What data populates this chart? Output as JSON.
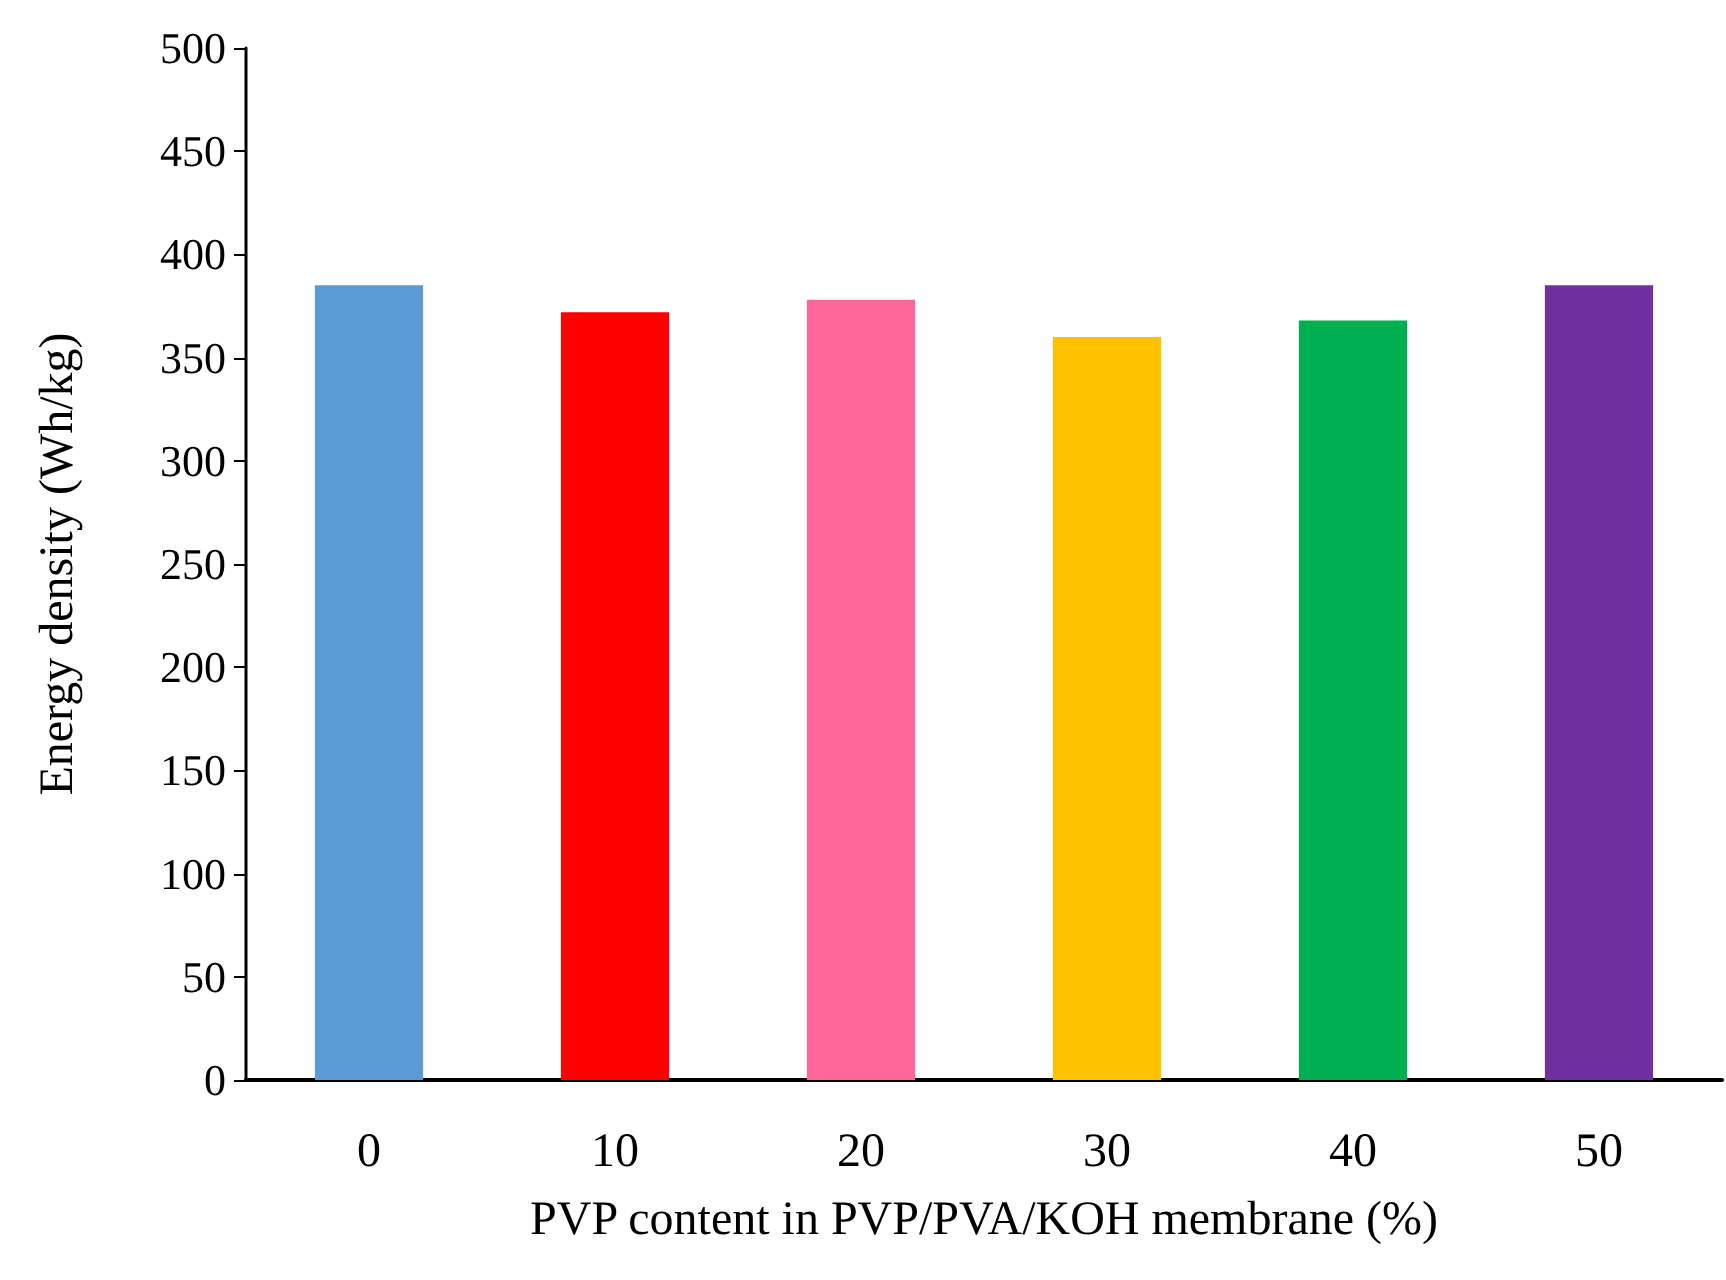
{
  "chart_data": {
    "type": "bar",
    "xlabel": "PVP content in PVP/PVA/KOH membrane (%)",
    "ylabel": "Energy density (Wh/kg)",
    "categories": [
      "0",
      "10",
      "20",
      "30",
      "40",
      "50"
    ],
    "values": [
      385,
      372,
      378,
      360,
      368,
      385
    ],
    "colors": [
      "#5b9bd5",
      "#ff0000",
      "#ff6699",
      "#ffc000",
      "#00b050",
      "#7030a0"
    ],
    "ylim": [
      0,
      500
    ],
    "yticks": [
      0,
      50,
      100,
      150,
      200,
      250,
      300,
      350,
      400,
      450,
      500
    ],
    "grid": false
  }
}
